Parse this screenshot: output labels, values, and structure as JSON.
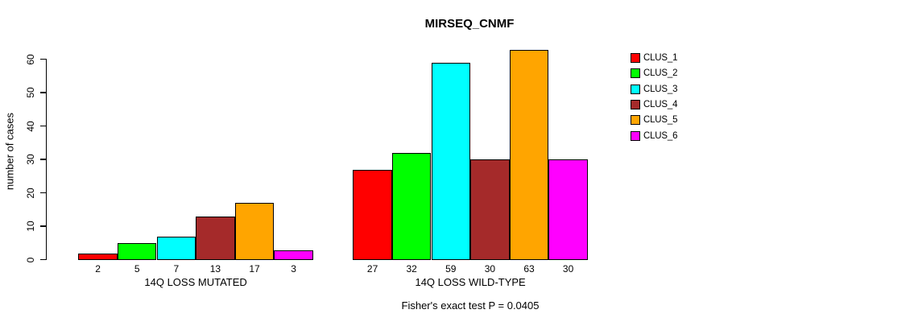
{
  "chart_data": {
    "type": "bar",
    "title": "MIRSEQ_CNMF",
    "ylabel": "number of cases",
    "xlabel": "",
    "ylim": [
      0,
      63
    ],
    "yticks": [
      0,
      10,
      20,
      30,
      40,
      50,
      60
    ],
    "grid": false,
    "legend_position": "right",
    "categories": [
      "14Q LOSS MUTATED",
      "14Q LOSS WILD-TYPE"
    ],
    "series": [
      {
        "name": "CLUS_1",
        "color": "#FF0000",
        "values": [
          2,
          27
        ]
      },
      {
        "name": "CLUS_2",
        "color": "#00FF00",
        "values": [
          5,
          32
        ]
      },
      {
        "name": "CLUS_3",
        "color": "#00FFFF",
        "values": [
          7,
          59
        ]
      },
      {
        "name": "CLUS_4",
        "color": "#A52A2A",
        "values": [
          13,
          30
        ]
      },
      {
        "name": "CLUS_5",
        "color": "#FFA500",
        "values": [
          17,
          63
        ]
      },
      {
        "name": "CLUS_6",
        "color": "#FF00FF",
        "values": [
          3,
          30
        ]
      }
    ],
    "bar_value_labels_visible": true,
    "annotation": "Fisher's exact test P = 0.0405"
  }
}
